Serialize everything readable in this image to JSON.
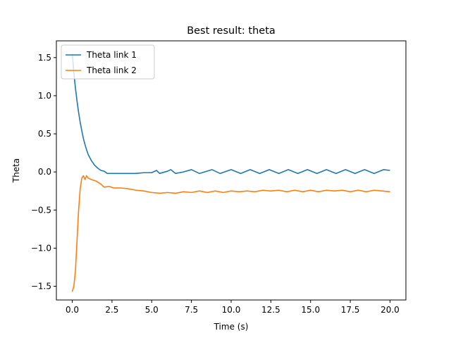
{
  "chart_data": {
    "type": "line",
    "title": "Best result: theta",
    "xlabel": "Time (s)",
    "ylabel": "Theta",
    "xlim": [
      -1.0,
      21.0
    ],
    "ylim": [
      -1.68,
      1.72
    ],
    "xticks": [
      0.0,
      2.5,
      5.0,
      7.5,
      10.0,
      12.5,
      15.0,
      17.5,
      20.0
    ],
    "xtick_labels": [
      "0.0",
      "2.5",
      "5.0",
      "7.5",
      "10.0",
      "12.5",
      "15.0",
      "17.5",
      "20.0"
    ],
    "yticks": [
      -1.5,
      -1.0,
      -0.5,
      0.0,
      0.5,
      1.0,
      1.5
    ],
    "ytick_labels": [
      "−1.5",
      "−1.0",
      "−0.5",
      "0.0",
      "0.5",
      "1.0",
      "1.5"
    ],
    "grid": false,
    "legend": "top-left",
    "series": [
      {
        "name": "Theta link 1",
        "color": "#1f77b4",
        "points": [
          [
            0.0,
            1.55
          ],
          [
            0.1,
            1.3
          ],
          [
            0.2,
            1.1
          ],
          [
            0.3,
            0.93
          ],
          [
            0.4,
            0.78
          ],
          [
            0.5,
            0.65
          ],
          [
            0.6,
            0.54
          ],
          [
            0.7,
            0.44
          ],
          [
            0.8,
            0.36
          ],
          [
            0.9,
            0.29
          ],
          [
            1.0,
            0.23
          ],
          [
            1.2,
            0.15
          ],
          [
            1.4,
            0.09
          ],
          [
            1.6,
            0.05
          ],
          [
            1.8,
            0.02
          ],
          [
            2.0,
            0.01
          ],
          [
            2.2,
            -0.02
          ],
          [
            2.5,
            -0.02
          ],
          [
            3.0,
            -0.02
          ],
          [
            3.5,
            -0.02
          ],
          [
            4.0,
            -0.02
          ],
          [
            4.5,
            -0.01
          ],
          [
            5.0,
            -0.01
          ],
          [
            5.3,
            0.02
          ],
          [
            5.5,
            -0.02
          ],
          [
            6.0,
            0.01
          ],
          [
            6.2,
            0.03
          ],
          [
            6.5,
            -0.02
          ],
          [
            7.0,
            0.0
          ],
          [
            7.5,
            0.03
          ],
          [
            8.0,
            -0.02
          ],
          [
            8.8,
            0.03
          ],
          [
            9.3,
            -0.02
          ],
          [
            10.0,
            0.03
          ],
          [
            10.6,
            -0.02
          ],
          [
            11.2,
            0.03
          ],
          [
            11.8,
            -0.02
          ],
          [
            12.4,
            0.03
          ],
          [
            13.0,
            -0.02
          ],
          [
            13.6,
            0.03
          ],
          [
            14.2,
            -0.02
          ],
          [
            14.8,
            0.03
          ],
          [
            15.4,
            -0.02
          ],
          [
            16.0,
            0.03
          ],
          [
            16.6,
            -0.02
          ],
          [
            17.2,
            0.03
          ],
          [
            17.8,
            -0.02
          ],
          [
            18.4,
            0.03
          ],
          [
            19.0,
            -0.02
          ],
          [
            19.6,
            0.03
          ],
          [
            20.0,
            0.02
          ]
        ]
      },
      {
        "name": "Theta link 2",
        "color": "#ff7f0e",
        "points": [
          [
            0.0,
            -1.57
          ],
          [
            0.1,
            -1.5
          ],
          [
            0.2,
            -1.3
          ],
          [
            0.3,
            -0.9
          ],
          [
            0.4,
            -0.5
          ],
          [
            0.5,
            -0.22
          ],
          [
            0.6,
            -0.08
          ],
          [
            0.7,
            -0.05
          ],
          [
            0.8,
            -0.1
          ],
          [
            0.9,
            -0.05
          ],
          [
            1.0,
            -0.08
          ],
          [
            1.2,
            -0.1
          ],
          [
            1.5,
            -0.12
          ],
          [
            1.8,
            -0.16
          ],
          [
            2.0,
            -0.2
          ],
          [
            2.3,
            -0.19
          ],
          [
            2.6,
            -0.21
          ],
          [
            3.0,
            -0.21
          ],
          [
            3.5,
            -0.22
          ],
          [
            4.0,
            -0.24
          ],
          [
            4.5,
            -0.25
          ],
          [
            5.0,
            -0.27
          ],
          [
            5.5,
            -0.28
          ],
          [
            6.0,
            -0.27
          ],
          [
            6.5,
            -0.28
          ],
          [
            7.0,
            -0.26
          ],
          [
            7.5,
            -0.27
          ],
          [
            8.0,
            -0.25
          ],
          [
            8.5,
            -0.27
          ],
          [
            9.0,
            -0.25
          ],
          [
            9.5,
            -0.27
          ],
          [
            10.0,
            -0.25
          ],
          [
            10.5,
            -0.26
          ],
          [
            11.0,
            -0.25
          ],
          [
            11.5,
            -0.26
          ],
          [
            12.0,
            -0.24
          ],
          [
            12.5,
            -0.25
          ],
          [
            13.0,
            -0.24
          ],
          [
            13.5,
            -0.26
          ],
          [
            14.0,
            -0.24
          ],
          [
            14.5,
            -0.26
          ],
          [
            15.0,
            -0.24
          ],
          [
            15.5,
            -0.26
          ],
          [
            16.0,
            -0.24
          ],
          [
            16.5,
            -0.25
          ],
          [
            17.0,
            -0.24
          ],
          [
            17.5,
            -0.26
          ],
          [
            18.0,
            -0.24
          ],
          [
            18.5,
            -0.26
          ],
          [
            19.0,
            -0.24
          ],
          [
            19.5,
            -0.25
          ],
          [
            20.0,
            -0.26
          ]
        ]
      }
    ]
  }
}
